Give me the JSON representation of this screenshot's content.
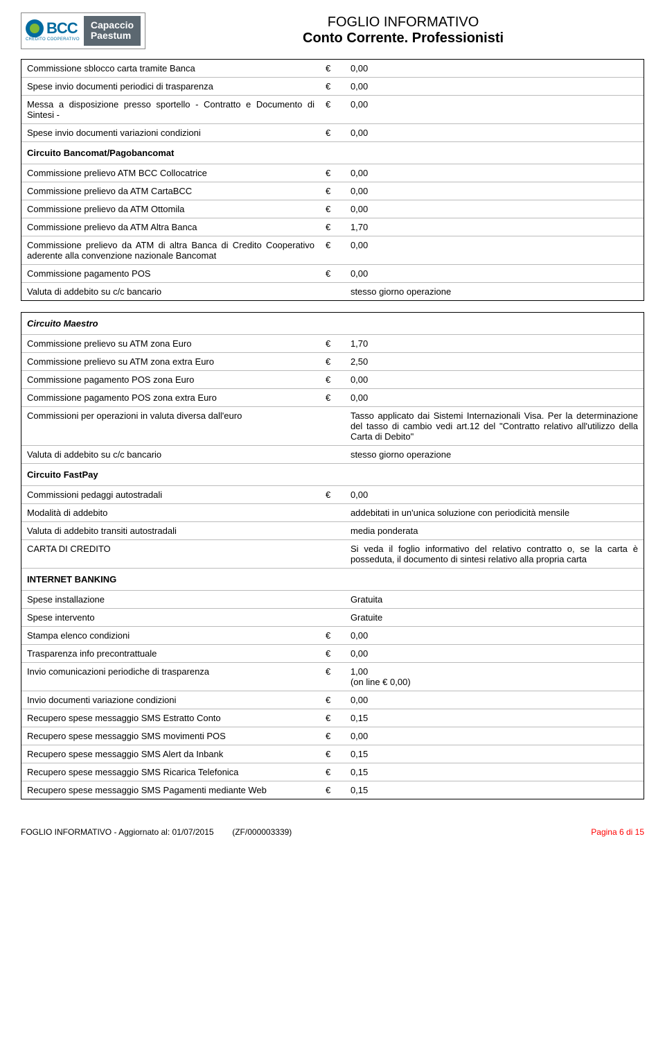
{
  "header": {
    "bcc_text": "BCC",
    "bcc_sub": "CREDITO COOPERATIVO",
    "capacity_line1": "Capaccio",
    "capacity_line2": "Paestum",
    "title1": "FOGLIO INFORMATIVO",
    "title2": "Conto Corrente. Professionisti"
  },
  "euro": "€",
  "table1": {
    "rows": [
      {
        "l": "Commissione sblocco carta tramite Banca",
        "e": "€",
        "r": "0,00"
      },
      {
        "l": "Spese invio documenti periodici di trasparenza",
        "e": "€",
        "r": "0,00"
      },
      {
        "l": "Messa a disposizione presso sportello - Contratto e Documento di Sintesi -",
        "e": "€",
        "r": "0,00"
      },
      {
        "l": "Spese invio documenti variazioni condizioni",
        "e": "€",
        "r": "0,00"
      }
    ],
    "section1": "Circuito Bancomat/Pagobancomat",
    "rows2": [
      {
        "l": "Commissione prelievo ATM BCC Collocatrice",
        "e": "€",
        "r": "0,00"
      },
      {
        "l": "Commissione prelievo da ATM CartaBCC",
        "e": "€",
        "r": "0,00"
      },
      {
        "l": "Commissione prelievo da ATM Ottomila",
        "e": "€",
        "r": "0,00"
      },
      {
        "l": "Commissione prelievo da ATM Altra Banca",
        "e": "€",
        "r": "1,70"
      },
      {
        "l": "Commissione prelievo da ATM di altra Banca di Credito Cooperativo aderente alla convenzione nazionale Bancomat",
        "e": "€",
        "r": "0,00"
      },
      {
        "l": "Commissione pagamento POS",
        "e": "€",
        "r": "0,00"
      },
      {
        "l": "Valuta di addebito su c/c bancario",
        "e": "",
        "r": "stesso giorno operazione"
      }
    ]
  },
  "table2": {
    "section_italic": "Circuito Maestro",
    "rows": [
      {
        "l": "Commissione prelievo su ATM zona Euro",
        "e": "€",
        "r": "1,70"
      },
      {
        "l": "Commissione prelievo su ATM zona extra Euro",
        "e": "€",
        "r": "2,50"
      },
      {
        "l": "Commissione pagamento POS zona Euro",
        "e": "€",
        "r": "0,00"
      },
      {
        "l": "Commissione pagamento POS zona extra Euro",
        "e": "€",
        "r": "0,00"
      },
      {
        "l": "Commissioni per operazioni in valuta diversa dall'euro",
        "e": "",
        "r": "Tasso applicato dai Sistemi Internazionali Visa. Per la determinazione del tasso di cambio vedi art.12 del \"Contratto relativo all'utilizzo della Carta di Debito\""
      },
      {
        "l": "Valuta di addebito su c/c bancario",
        "e": "",
        "r": "stesso giorno operazione"
      }
    ],
    "section2": "Circuito FastPay",
    "rows2": [
      {
        "l": "Commissioni pedaggi autostradali",
        "e": "€",
        "r": "0,00"
      },
      {
        "l": "Modalità di addebito",
        "e": "",
        "r": "addebitati in un'unica soluzione con periodicità mensile"
      },
      {
        "l": "Valuta di addebito transiti autostradali",
        "e": "",
        "r": "media ponderata"
      },
      {
        "l": "CARTA DI CREDITO",
        "e": "",
        "r": "Si veda il foglio informativo del relativo contratto o, se la carta è posseduta,  il documento di sintesi relativo alla propria carta"
      }
    ],
    "section3": "INTERNET BANKING",
    "rows3": [
      {
        "l": "Spese installazione",
        "e": "",
        "r": "Gratuita"
      },
      {
        "l": "Spese intervento",
        "e": "",
        "r": "Gratuite"
      },
      {
        "l": "Stampa elenco condizioni",
        "e": "€",
        "r": "0,00"
      },
      {
        "l": "Trasparenza info precontrattuale",
        "e": "€",
        "r": "0,00"
      },
      {
        "l": "Invio comunicazioni periodiche di trasparenza",
        "e": "€",
        "r": "1,00\n(on line € 0,00)"
      },
      {
        "l": "Invio documenti variazione condizioni",
        "e": "€",
        "r": "0,00"
      },
      {
        "l": "Recupero spese messaggio SMS Estratto Conto",
        "e": "€",
        "r": "0,15"
      },
      {
        "l": "Recupero spese messaggio SMS movimenti POS",
        "e": "€",
        "r": "0,00"
      },
      {
        "l": "Recupero spese messaggio SMS Alert da Inbank",
        "e": "€",
        "r": "0,15"
      },
      {
        "l": "Recupero spese messaggio SMS Ricarica Telefonica",
        "e": "€",
        "r": "0,15"
      },
      {
        "l": "Recupero spese messaggio SMS Pagamenti mediante Web",
        "e": "€",
        "r": "0,15"
      }
    ]
  },
  "footer": {
    "left": "FOGLIO INFORMATIVO - Aggiornato al: 01/07/2015",
    "mid": "(ZF/000003339)",
    "right": "Pagina 6 di 15"
  }
}
